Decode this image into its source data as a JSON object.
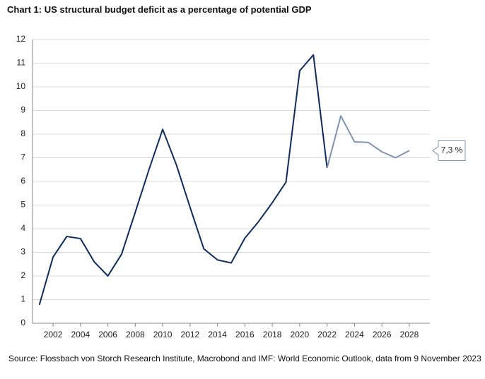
{
  "chart_data": {
    "type": "line",
    "title": "Chart 1: US structural budget deficit as a percentage of potential GDP",
    "x": [
      2001,
      2002,
      2003,
      2004,
      2005,
      2006,
      2007,
      2008,
      2009,
      2010,
      2011,
      2012,
      2013,
      2014,
      2015,
      2016,
      2017,
      2018,
      2019,
      2020,
      2021,
      2022,
      2023,
      2024,
      2025,
      2026,
      2027,
      2028
    ],
    "series": [
      {
        "color": "#0d2b5e",
        "values": [
          0.78,
          2.8,
          3.67,
          3.58,
          2.6,
          2.0,
          2.92,
          4.7,
          6.5,
          8.2,
          6.7,
          4.9,
          3.15,
          2.68,
          2.55,
          3.6,
          4.3,
          5.1,
          5.97,
          10.68,
          11.35,
          6.57,
          null,
          null,
          null,
          null,
          null,
          null
        ]
      },
      {
        "color": "#7e94b4",
        "values": [
          null,
          null,
          null,
          null,
          null,
          null,
          null,
          null,
          null,
          null,
          null,
          null,
          null,
          null,
          null,
          null,
          null,
          null,
          null,
          null,
          null,
          6.57,
          8.77,
          7.67,
          7.65,
          7.25,
          7.0,
          7.3
        ]
      }
    ],
    "annotation": "7,3 %",
    "xlim": [
      2000.5,
      2029.5
    ],
    "xticks": [
      2002,
      2004,
      2006,
      2008,
      2010,
      2012,
      2014,
      2016,
      2018,
      2020,
      2022,
      2024,
      2026,
      2028
    ],
    "ylim": [
      0,
      12
    ],
    "yticks": [
      0,
      1,
      2,
      3,
      4,
      5,
      6,
      7,
      8,
      9,
      10,
      11,
      12
    ],
    "grid": true,
    "source": "Source: Flossbach von Storch Research Institute, Macrobond and IMF: World Economic Outlook, data from 9 November 2023"
  }
}
